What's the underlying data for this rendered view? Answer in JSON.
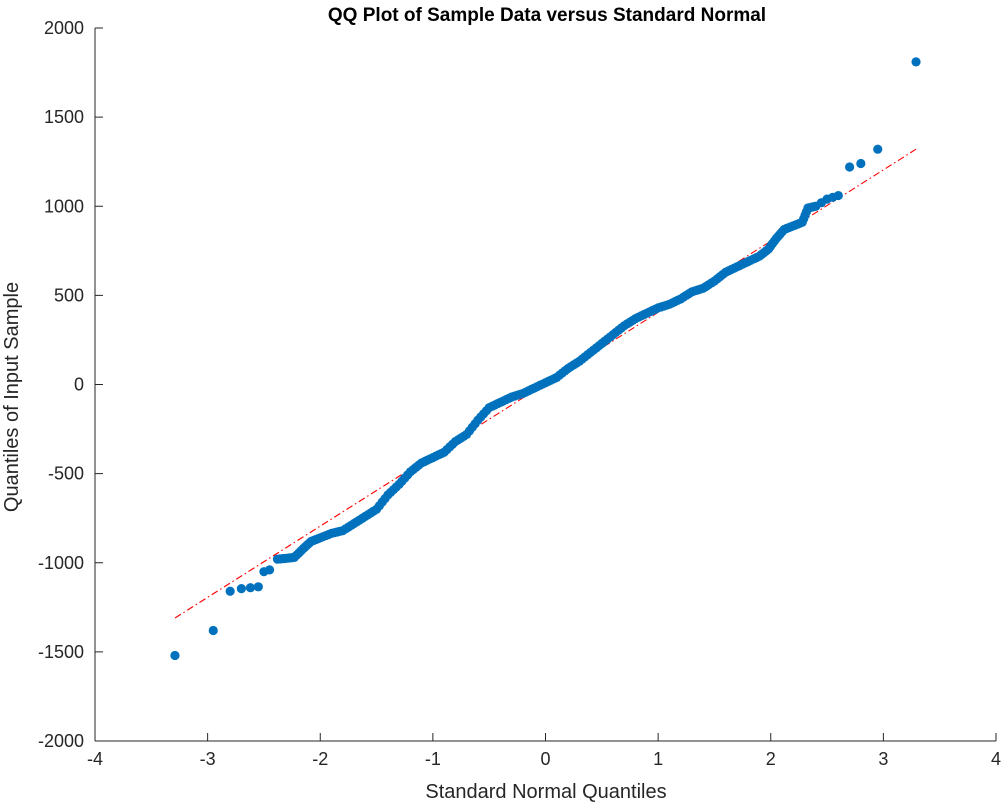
{
  "chart_data": {
    "type": "scatter",
    "title": "QQ Plot of Sample Data versus Standard Normal",
    "xlabel": "Standard Normal Quantiles",
    "ylabel": "Quantiles of Input Sample",
    "xlim": [
      -4,
      4
    ],
    "ylim": [
      -2000,
      2000
    ],
    "xticks": [
      -4,
      -3,
      -2,
      -1,
      0,
      1,
      2,
      3,
      4
    ],
    "yticks": [
      -2000,
      -1500,
      -1000,
      -500,
      0,
      500,
      1000,
      1500,
      2000
    ],
    "xtick_labels": [
      "-4",
      "-3",
      "-2",
      "-1",
      "0",
      "1",
      "2",
      "3",
      "4"
    ],
    "ytick_labels": [
      "-2000",
      "-1500",
      "-1000",
      "-500",
      "0",
      "500",
      "1000",
      "1500",
      "2000"
    ],
    "grid": false,
    "series": [
      {
        "kind": "points",
        "color": "#0072BD",
        "points": [
          [
            -3.29,
            -1520
          ],
          [
            -2.95,
            -1380
          ],
          [
            -2.8,
            -1160
          ],
          [
            -2.7,
            -1145
          ],
          [
            -2.62,
            -1140
          ],
          [
            -2.55,
            -1135
          ],
          [
            -2.5,
            -1050
          ],
          [
            -2.45,
            -1040
          ],
          [
            -2.38,
            -980
          ],
          [
            -2.3,
            -975
          ],
          [
            -2.23,
            -970
          ],
          [
            -2.15,
            -920
          ],
          [
            -2.08,
            -880
          ],
          [
            -2.0,
            -860
          ],
          [
            -1.9,
            -835
          ],
          [
            -1.8,
            -820
          ],
          [
            -1.7,
            -780
          ],
          [
            -1.6,
            -740
          ],
          [
            -1.5,
            -700
          ],
          [
            -1.4,
            -620
          ],
          [
            -1.3,
            -560
          ],
          [
            -1.2,
            -490
          ],
          [
            -1.1,
            -440
          ],
          [
            -1.0,
            -410
          ],
          [
            -0.9,
            -380
          ],
          [
            -0.8,
            -320
          ],
          [
            -0.7,
            -280
          ],
          [
            -0.6,
            -200
          ],
          [
            -0.5,
            -130
          ],
          [
            -0.4,
            -100
          ],
          [
            -0.3,
            -70
          ],
          [
            -0.2,
            -50
          ],
          [
            -0.1,
            -20
          ],
          [
            0.0,
            10
          ],
          [
            0.1,
            40
          ],
          [
            0.2,
            90
          ],
          [
            0.3,
            130
          ],
          [
            0.4,
            180
          ],
          [
            0.5,
            230
          ],
          [
            0.6,
            280
          ],
          [
            0.7,
            330
          ],
          [
            0.8,
            370
          ],
          [
            0.9,
            400
          ],
          [
            1.0,
            430
          ],
          [
            1.1,
            450
          ],
          [
            1.2,
            480
          ],
          [
            1.3,
            520
          ],
          [
            1.4,
            540
          ],
          [
            1.5,
            580
          ],
          [
            1.6,
            630
          ],
          [
            1.7,
            660
          ],
          [
            1.8,
            690
          ],
          [
            1.9,
            720
          ],
          [
            1.98,
            760
          ],
          [
            2.05,
            820
          ],
          [
            2.12,
            870
          ],
          [
            2.2,
            890
          ],
          [
            2.28,
            910
          ],
          [
            2.33,
            990
          ],
          [
            2.4,
            1000
          ],
          [
            2.45,
            1020
          ],
          [
            2.5,
            1040
          ],
          [
            2.55,
            1050
          ],
          [
            2.6,
            1060
          ],
          [
            2.7,
            1220
          ],
          [
            2.8,
            1240
          ],
          [
            2.95,
            1320
          ],
          [
            3.29,
            1810
          ]
        ]
      },
      {
        "kind": "reference-line",
        "color": "#FF0000",
        "style": "dash-dot",
        "points": [
          [
            -3.29,
            -1310
          ],
          [
            3.29,
            1320
          ]
        ]
      }
    ]
  }
}
